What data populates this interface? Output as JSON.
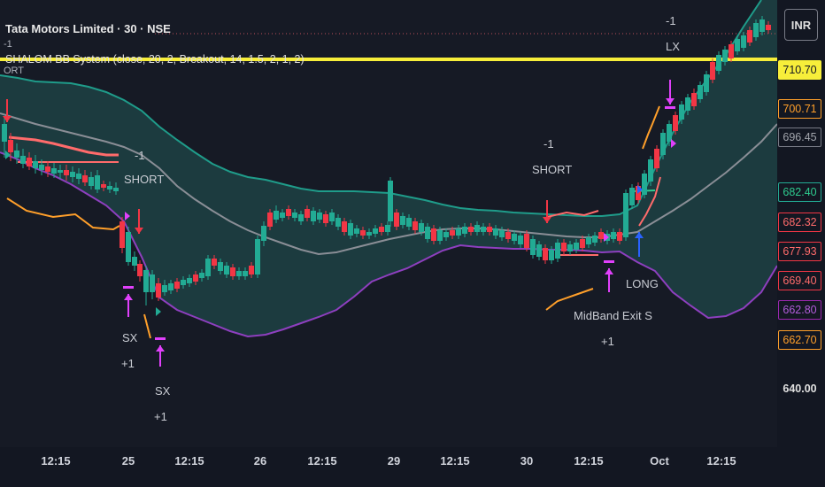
{
  "header": {
    "symbol_line": "Tata Motors Limited · 30 · NSE",
    "indicator_line": "SHALOM BB System (close, 20, 2, Breakout, 14, 1.5, 2, 1, 2)",
    "pre1": "-1",
    "pre2": "ORT"
  },
  "currency_button": "INR",
  "annotations": {
    "short_left_qty": "-1",
    "short_left": "SHORT",
    "short_mid_qty": "-1",
    "short_mid": "SHORT",
    "sx1": "SX",
    "sx1_qty": "+1",
    "sx2": "SX",
    "sx2_qty": "+1",
    "long": "LONG",
    "midband_exit": "MidBand Exit S",
    "midband_qty": "+1",
    "lx_qty": "-1",
    "lx": "LX"
  },
  "price_labels": [
    {
      "text": "710.70",
      "fg": "#131722",
      "bg": "#f7ee3a",
      "border": "#f7ee3a"
    },
    {
      "text": "700.71",
      "fg": "#ff9f2a",
      "bg": "#131722",
      "border": "#ff9f2a"
    },
    {
      "text": "696.45",
      "fg": "#a3a6ad",
      "bg": "#131722",
      "border": "#787b86"
    },
    {
      "text": "682.40",
      "fg": "#2ecc8f",
      "bg": "#131722",
      "border": "#22ab94"
    },
    {
      "text": "682.32",
      "fg": "#ff6b6b",
      "bg": "#131722",
      "border": "#f23645"
    },
    {
      "text": "677.93",
      "fg": "#ff6b6b",
      "bg": "#131722",
      "border": "#f23645"
    },
    {
      "text": "669.40",
      "fg": "#ff6b6b",
      "bg": "#131722",
      "border": "#f23645"
    },
    {
      "text": "662.80",
      "fg": "#b35cdb",
      "bg": "#131722",
      "border": "#9c27b0"
    },
    {
      "text": "662.70",
      "fg": "#ff9f2a",
      "bg": "#131722",
      "border": "#ff9f2a"
    },
    {
      "text": "640.00",
      "fg": "#e0e0e0",
      "bg": "transparent",
      "border": "transparent"
    }
  ],
  "time_labels": [
    "12:15",
    "25",
    "12:15",
    "26",
    "12:15",
    "29",
    "12:15",
    "30",
    "12:15",
    "Oct",
    "12:15"
  ],
  "colors": {
    "background": "#161a25",
    "up": "#22ab94",
    "down": "#f23645",
    "upper_band": "#1f9c8a",
    "lower_band": "#8e3fbf",
    "basis": "#8a8e96",
    "band_fill": "#1e4446",
    "yellow_line": "#f7ee3a",
    "orange": "#ff9f2a",
    "arrow_magenta": "#e040fb",
    "arrow_blue": "#2962ff",
    "stop_red": "#ff6b6b"
  }
}
